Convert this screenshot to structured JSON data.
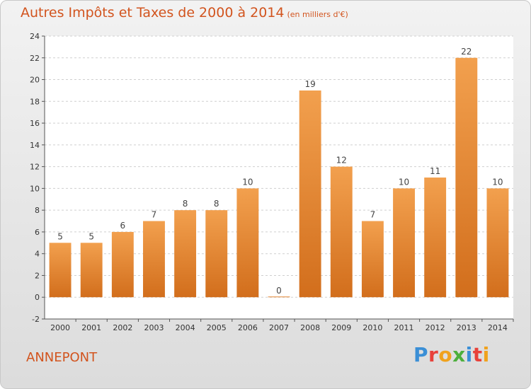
{
  "chart_data": {
    "type": "bar",
    "title": "Autres Impôts et Taxes de 2000 à 2014",
    "subtitle": "(en milliers d'€)",
    "categories": [
      "2000",
      "2001",
      "2002",
      "2003",
      "2004",
      "2005",
      "2006",
      "2007",
      "2008",
      "2009",
      "2010",
      "2011",
      "2012",
      "2013",
      "2014"
    ],
    "values": [
      5,
      5,
      6,
      7,
      8,
      8,
      10,
      0,
      19,
      12,
      7,
      10,
      11,
      22,
      10
    ],
    "data_labels": [
      "5",
      "5",
      "6",
      "7",
      "8",
      "8",
      "10",
      "0",
      "19",
      "12",
      "7",
      "10",
      "11",
      "22",
      "10"
    ],
    "ylim": [
      -2,
      24
    ],
    "yticks": [
      "-2",
      "0",
      "2",
      "4",
      "6",
      "8",
      "10",
      "12",
      "14",
      "16",
      "18",
      "20",
      "22",
      "24"
    ],
    "grid": "horizontal-dashed",
    "xlabel": "",
    "ylabel": "",
    "bar_color": "#f2a04e",
    "bar_color_dark": "#d26e1c"
  },
  "footer": {
    "commune": "ANNEPONT",
    "logo": "Proxiti",
    "logo_colors": [
      "#3b8fd6",
      "#e8413a",
      "#f0a21d",
      "#4caf3c",
      "#3b8fd6",
      "#e8413a",
      "#f0a21d"
    ]
  }
}
